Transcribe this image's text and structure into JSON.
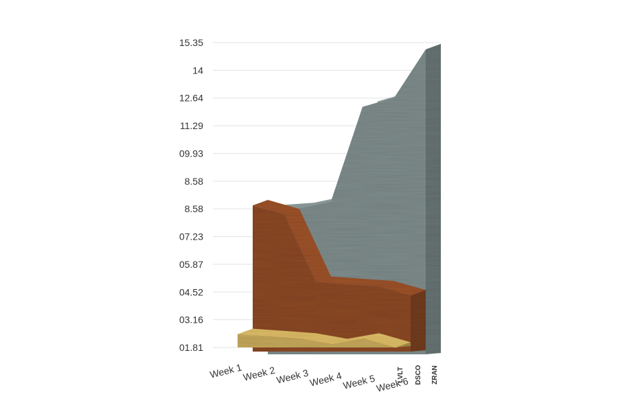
{
  "chart_data": {
    "type": "area",
    "style": "3d-stacked-depth",
    "categories": [
      "Week 1",
      "Week 2",
      "Week 3",
      "Week 4",
      "Week 5",
      "Week 6"
    ],
    "y_ticks": [
      "01.81",
      "03.16",
      "04.52",
      "05.87",
      "07.23",
      "8.58",
      "8.58",
      "09.93",
      "11.29",
      "12.64",
      "14",
      "15.35"
    ],
    "ylim": [
      1.81,
      15.35
    ],
    "grid": true,
    "series": [
      {
        "name": "LVLT",
        "color": "#c6a95c",
        "values": [
          2.4,
          2.3,
          2.2,
          1.95,
          2.2,
          1.8
        ]
      },
      {
        "name": "DSCO",
        "color": "#8b4a27",
        "values": [
          8.3,
          7.9,
          4.9,
          4.8,
          4.7,
          4.3
        ]
      },
      {
        "name": "ZRAN",
        "color": "#7f8c8c",
        "values": [
          8.2,
          8.3,
          8.6,
          12.8,
          13.2,
          15.35
        ]
      }
    ]
  }
}
